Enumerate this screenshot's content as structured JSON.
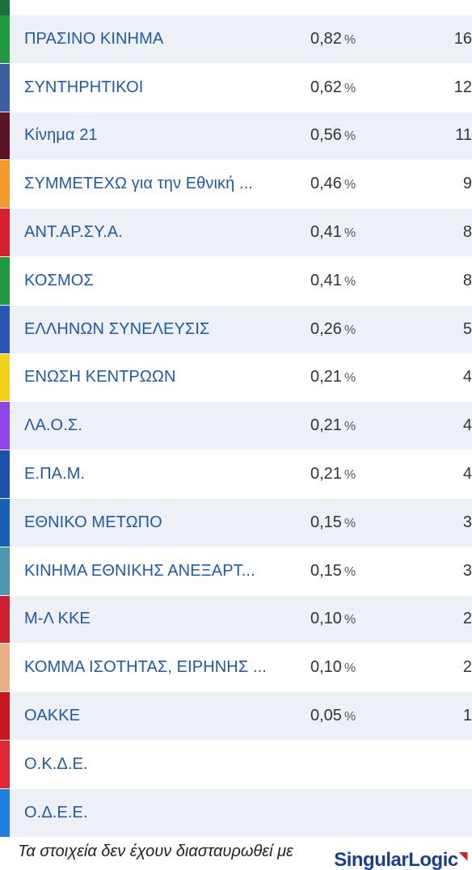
{
  "results": [
    {
      "name": "ΠΡΑΣΙΝΟ ΚΙΝΗΜΑ",
      "percent": "0,82",
      "seats": "16",
      "color": "#1f9a3f"
    },
    {
      "name": "ΣΥΝΤΗΡΗΤΙΚΟΙ",
      "percent": "0,62",
      "seats": "12",
      "color": "#3a5fa3"
    },
    {
      "name": "Κίνημα 21",
      "percent": "0,56",
      "seats": "11",
      "color": "#5a1426"
    },
    {
      "name": "ΣΥΜΜΕΤΕΧΩ για την Εθνική ...",
      "percent": "0,46",
      "seats": "9",
      "color": "#f39a2a"
    },
    {
      "name": "ΑΝΤ.ΑΡ.ΣΥ.Α.",
      "percent": "0,41",
      "seats": "8",
      "color": "#d4202c"
    },
    {
      "name": "ΚΟΣΜΟΣ",
      "percent": "0,41",
      "seats": "8",
      "color": "#1f9a3f"
    },
    {
      "name": "ΕΛΛΗΝΩΝ ΣΥΝΕΛΕΥΣΙΣ",
      "percent": "0,26",
      "seats": "5",
      "color": "#2a55b5"
    },
    {
      "name": "ΕΝΩΣΗ ΚΕΝΤΡΩΩΝ",
      "percent": "0,21",
      "seats": "4",
      "color": "#f2d21a"
    },
    {
      "name": "ΛΑ.Ο.Σ.",
      "percent": "0,21",
      "seats": "4",
      "color": "#8f45e8"
    },
    {
      "name": "Ε.ΠΑ.Μ.",
      "percent": "0,21",
      "seats": "4",
      "color": "#1e4fa8"
    },
    {
      "name": "ΕΘΝΙΚΟ ΜΕΤΩΠΟ",
      "percent": "0,15",
      "seats": "3",
      "color": "#1560b0"
    },
    {
      "name": "ΚΙΝΗΜΑ ΕΘΝΙΚΗΣ ΑΝΕΞΑΡΤ...",
      "percent": "0,15",
      "seats": "3",
      "color": "#4e95b0"
    },
    {
      "name": "Μ-Λ ΚΚΕ",
      "percent": "0,10",
      "seats": "2",
      "color": "#cc2030"
    },
    {
      "name": "ΚΟΜΜΑ ΙΣΟΤΗΤΑΣ, ΕΙΡΗΝΗΣ ...",
      "percent": "0,10",
      "seats": "2",
      "color": "#e8b088"
    },
    {
      "name": "ΟΑΚΚΕ",
      "percent": "0,05",
      "seats": "1",
      "color": "#c8181e"
    },
    {
      "name": "Ο.Κ.Δ.Ε.",
      "percent": "",
      "seats": "",
      "color": "#e02634"
    },
    {
      "name": "Ο.Δ.Ε.Ε.",
      "percent": "",
      "seats": "",
      "color": "#1f7fe0"
    }
  ],
  "percent_sign": "%",
  "footer": {
    "disclaimer": "Τα στοιχεία δεν έχουν διασταυρωθεί με",
    "logo_part1": "Singular",
    "logo_part2": "Logic",
    "logo_mark": "◥"
  },
  "colors": {
    "party_name": "#1e5aa8",
    "row_alt": "#eef0f7",
    "logo": "#1b3f8f",
    "logo_accent": "#d0202e"
  }
}
